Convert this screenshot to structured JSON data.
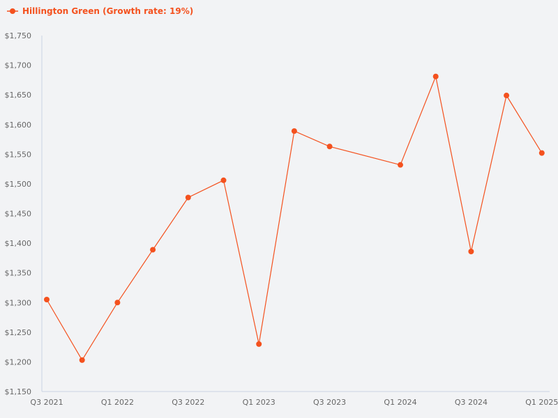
{
  "legend": {
    "label": "Hillington Green (Growth rate: 19%)",
    "color": "#f4511e"
  },
  "chart_data": {
    "type": "line",
    "title": "",
    "xlabel": "",
    "ylabel": "",
    "ylim": [
      1150,
      1750
    ],
    "grid": false,
    "legend_position": "top-left",
    "y_ticks": [
      "$1,150",
      "$1,200",
      "$1,250",
      "$1,300",
      "$1,350",
      "$1,400",
      "$1,450",
      "$1,500",
      "$1,550",
      "$1,600",
      "$1,650",
      "$1,700",
      "$1,750"
    ],
    "x_tick_labels": [
      "Q3 2021",
      "Q1 2022",
      "Q3 2022",
      "Q1 2023",
      "Q3 2023",
      "Q1 2024",
      "Q3 2024",
      "Q1 2025"
    ],
    "series": [
      {
        "name": "Hillington Green (Growth rate: 19%)",
        "color": "#f4511e",
        "points": [
          {
            "x": "Q3 2021",
            "i": 0,
            "y": 1305
          },
          {
            "x": "Q4 2021",
            "i": 1,
            "y": 1203
          },
          {
            "x": "Q1 2022",
            "i": 2,
            "y": 1300
          },
          {
            "x": "Q2 2022",
            "i": 3,
            "y": 1389
          },
          {
            "x": "Q3 2022",
            "i": 4,
            "y": 1477
          },
          {
            "x": "Q4 2022",
            "i": 5,
            "y": 1506
          },
          {
            "x": "Q1 2023",
            "i": 6,
            "y": 1230
          },
          {
            "x": "Q2 2023",
            "i": 7,
            "y": 1589
          },
          {
            "x": "Q3 2023",
            "i": 8,
            "y": 1563
          },
          {
            "x": "Q1 2024",
            "i": 10,
            "y": 1532
          },
          {
            "x": "Q2 2024",
            "i": 11,
            "y": 1681
          },
          {
            "x": "Q3 2024",
            "i": 12,
            "y": 1386
          },
          {
            "x": "Q4 2024",
            "i": 13,
            "y": 1649
          },
          {
            "x": "Q1 2025",
            "i": 14,
            "y": 1552
          }
        ]
      }
    ]
  }
}
